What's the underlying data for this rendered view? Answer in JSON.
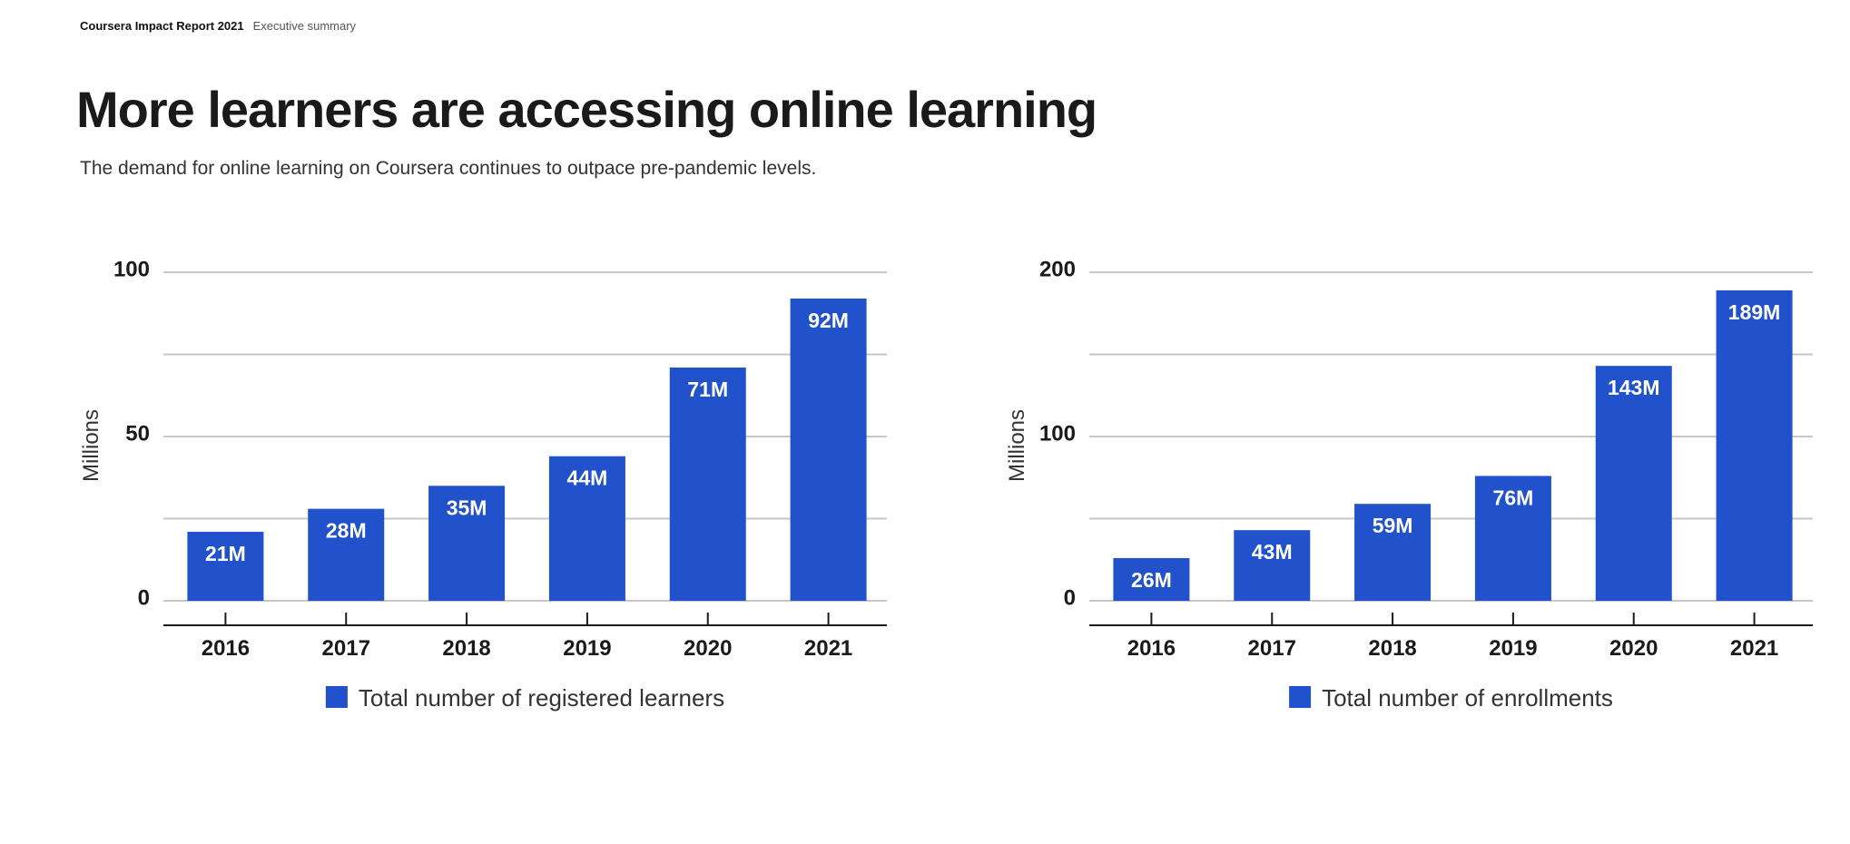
{
  "header": {
    "report": "Coursera Impact Report 2021",
    "section": "Executive summary"
  },
  "title": "More learners are accessing online learning",
  "subtitle": "The demand for online learning on Coursera continues to outpace pre-pandemic levels.",
  "colors": {
    "bar": "#2152cc",
    "grid": "#c8c8c8",
    "axis": "#1a1a1a"
  },
  "chart_data": [
    {
      "type": "bar",
      "categories": [
        "2016",
        "2017",
        "2018",
        "2019",
        "2020",
        "2021"
      ],
      "values": [
        21,
        28,
        35,
        44,
        71,
        92
      ],
      "data_labels": [
        "21M",
        "28M",
        "35M",
        "44M",
        "71M",
        "92M"
      ],
      "ylabel": "Millions",
      "ylim": [
        0,
        100
      ],
      "yticks": [
        0,
        50,
        100
      ],
      "ytick_labels": [
        "0",
        "50",
        "100"
      ],
      "grid": true,
      "legend": {
        "label": "Total number of registered learners",
        "placement": "bottom-center"
      }
    },
    {
      "type": "bar",
      "categories": [
        "2016",
        "2017",
        "2018",
        "2019",
        "2020",
        "2021"
      ],
      "values": [
        26,
        43,
        59,
        76,
        143,
        189
      ],
      "data_labels": [
        "26M",
        "43M",
        "59M",
        "76M",
        "143M",
        "189M"
      ],
      "ylabel": "Millions",
      "ylim": [
        0,
        200
      ],
      "yticks": [
        0,
        100,
        200
      ],
      "ytick_labels": [
        "0",
        "100",
        "200"
      ],
      "grid": true,
      "legend": {
        "label": "Total number of enrollments",
        "placement": "bottom-center"
      }
    }
  ]
}
